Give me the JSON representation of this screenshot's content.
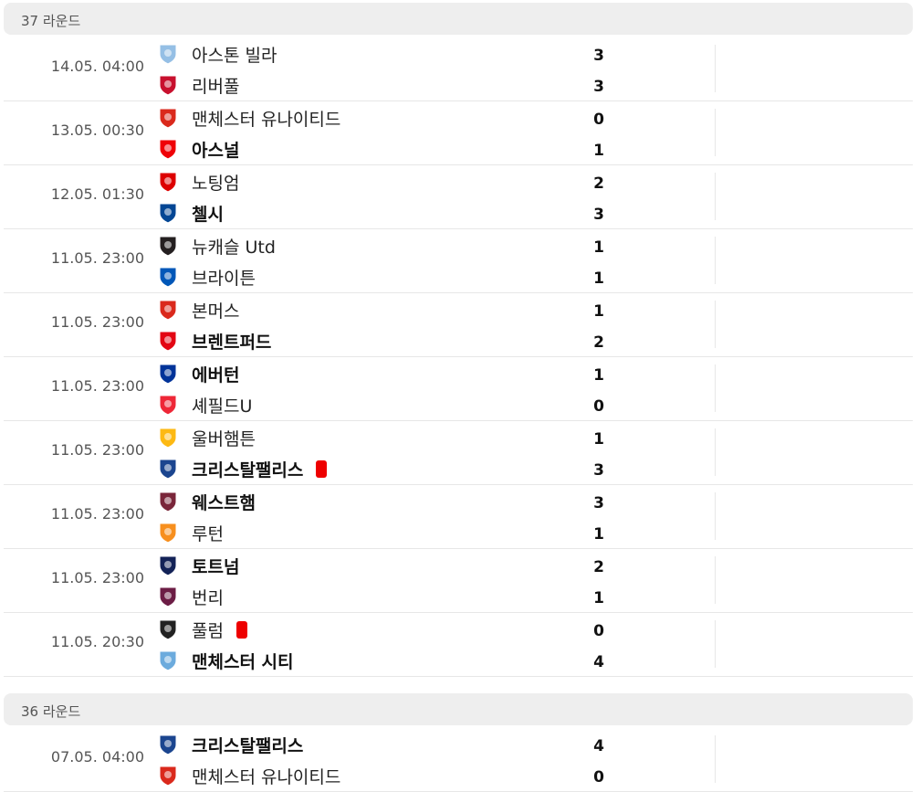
{
  "rounds": [
    {
      "label": "37 라운드",
      "matches": [
        {
          "time": "14.05. 04:00",
          "home": {
            "name": "아스톤 빌라",
            "crest": "aston-villa-crest",
            "win": false,
            "redcard": false
          },
          "away": {
            "name": "리버풀",
            "crest": "liverpool-crest",
            "win": false,
            "redcard": false
          },
          "home_score": "3",
          "away_score": "3"
        },
        {
          "time": "13.05. 00:30",
          "home": {
            "name": "맨체스터 유나이티드",
            "crest": "man-utd-crest",
            "win": false,
            "redcard": false
          },
          "away": {
            "name": "아스널",
            "crest": "arsenal-crest",
            "win": true,
            "redcard": false
          },
          "home_score": "0",
          "away_score": "1"
        },
        {
          "time": "12.05. 01:30",
          "home": {
            "name": "노팅엄",
            "crest": "nottingham-crest",
            "win": false,
            "redcard": false
          },
          "away": {
            "name": "첼시",
            "crest": "chelsea-crest",
            "win": true,
            "redcard": false
          },
          "home_score": "2",
          "away_score": "3"
        },
        {
          "time": "11.05. 23:00",
          "home": {
            "name": "뉴캐슬 Utd",
            "crest": "newcastle-crest",
            "win": false,
            "redcard": false
          },
          "away": {
            "name": "브라이튼",
            "crest": "brighton-crest",
            "win": false,
            "redcard": false
          },
          "home_score": "1",
          "away_score": "1"
        },
        {
          "time": "11.05. 23:00",
          "home": {
            "name": "본머스",
            "crest": "bournemouth-crest",
            "win": false,
            "redcard": false
          },
          "away": {
            "name": "브렌트퍼드",
            "crest": "brentford-crest",
            "win": true,
            "redcard": false
          },
          "home_score": "1",
          "away_score": "2"
        },
        {
          "time": "11.05. 23:00",
          "home": {
            "name": "에버턴",
            "crest": "everton-crest",
            "win": true,
            "redcard": false
          },
          "away": {
            "name": "셰필드U",
            "crest": "sheffield-crest",
            "win": false,
            "redcard": false
          },
          "home_score": "1",
          "away_score": "0"
        },
        {
          "time": "11.05. 23:00",
          "home": {
            "name": "울버햄튼",
            "crest": "wolves-crest",
            "win": false,
            "redcard": false
          },
          "away": {
            "name": "크리스탈팰리스",
            "crest": "crystal-palace-crest",
            "win": true,
            "redcard": true
          },
          "home_score": "1",
          "away_score": "3"
        },
        {
          "time": "11.05. 23:00",
          "home": {
            "name": "웨스트햄",
            "crest": "west-ham-crest",
            "win": true,
            "redcard": false
          },
          "away": {
            "name": "루턴",
            "crest": "luton-crest",
            "win": false,
            "redcard": false
          },
          "home_score": "3",
          "away_score": "1"
        },
        {
          "time": "11.05. 23:00",
          "home": {
            "name": "토트넘",
            "crest": "tottenham-crest",
            "win": true,
            "redcard": false
          },
          "away": {
            "name": "번리",
            "crest": "burnley-crest",
            "win": false,
            "redcard": false
          },
          "home_score": "2",
          "away_score": "1"
        },
        {
          "time": "11.05. 20:30",
          "home": {
            "name": "풀럼",
            "crest": "fulham-crest",
            "win": false,
            "redcard": true
          },
          "away": {
            "name": "맨체스터 시티",
            "crest": "man-city-crest",
            "win": true,
            "redcard": false
          },
          "home_score": "0",
          "away_score": "4"
        }
      ]
    },
    {
      "label": "36 라운드",
      "matches": [
        {
          "time": "07.05. 04:00",
          "home": {
            "name": "크리스탈팰리스",
            "crest": "crystal-palace-crest",
            "win": true,
            "redcard": false
          },
          "away": {
            "name": "맨체스터 유나이티드",
            "crest": "man-utd-crest",
            "win": false,
            "redcard": false
          },
          "home_score": "4",
          "away_score": "0"
        }
      ]
    }
  ],
  "crest_colors": {
    "aston-villa-crest": "#95bfe5",
    "liverpool-crest": "#c8102e",
    "man-utd-crest": "#da291c",
    "arsenal-crest": "#ef0107",
    "nottingham-crest": "#dd0000",
    "chelsea-crest": "#034694",
    "newcastle-crest": "#241f20",
    "brighton-crest": "#0057b8",
    "bournemouth-crest": "#da291c",
    "brentford-crest": "#e30613",
    "everton-crest": "#003399",
    "sheffield-crest": "#ee2737",
    "wolves-crest": "#fdb913",
    "crystal-palace-crest": "#1b458f",
    "west-ham-crest": "#7a263a",
    "luton-crest": "#f78f1e",
    "tottenham-crest": "#132257",
    "burnley-crest": "#6c1d45",
    "fulham-crest": "#222222",
    "man-city-crest": "#6cabdd"
  }
}
